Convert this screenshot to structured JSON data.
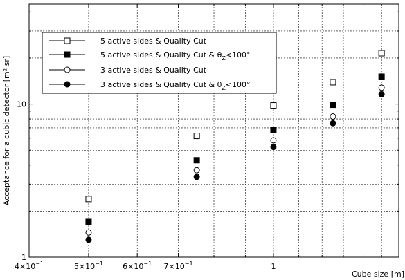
{
  "chart_data": {
    "type": "scatter",
    "xlabel": "Cube size [m]",
    "ylabel": "Acceptance for a cubic detector [m² sr]",
    "x_scale": "log",
    "y_scale": "log",
    "xlim": [
      0.4,
      1.6
    ],
    "ylim": [
      1,
      45
    ],
    "grid": "dashed, major and minor",
    "x_ticks": [
      {
        "value": 0.4,
        "mant": "4",
        "exp": "−1"
      },
      {
        "value": 0.5,
        "mant": "5",
        "exp": "−1"
      },
      {
        "value": 0.6,
        "mant": "6",
        "exp": "−1"
      },
      {
        "value": 0.7,
        "mant": "7",
        "exp": "−1"
      },
      {
        "value": 1.0,
        "mant": "1",
        "exp": ""
      }
    ],
    "y_ticks": [
      {
        "value": 1,
        "label": "1"
      },
      {
        "value": 10,
        "label": "10"
      }
    ],
    "legend": {
      "position": "top-left",
      "entries": [
        {
          "marker": "open-square",
          "text": "5 active sides & Quality Cut",
          "theta": false
        },
        {
          "marker": "filled-square",
          "text": "5 active sides & Quality Cut & ",
          "theta": true
        },
        {
          "marker": "open-circle",
          "text": "3 active sides & Quality Cut",
          "theta": false
        },
        {
          "marker": "filled-circle",
          "text": "3 active sides & Quality Cut & ",
          "theta": true
        }
      ],
      "theta_text": {
        "sym": "θ",
        "sub": "Z",
        "rest": "<100°"
      }
    },
    "series": [
      {
        "marker": "open-square",
        "x": [
          0.5,
          0.75,
          1.0,
          1.25,
          1.5
        ],
        "y": [
          2.4,
          6.2,
          9.8,
          13.9,
          21.5
        ]
      },
      {
        "marker": "filled-square",
        "x": [
          0.5,
          0.75,
          1.0,
          1.25,
          1.5
        ],
        "y": [
          1.7,
          4.3,
          6.8,
          9.9,
          15.1
        ]
      },
      {
        "marker": "open-circle",
        "x": [
          0.5,
          0.75,
          1.0,
          1.25,
          1.5
        ],
        "y": [
          1.45,
          3.7,
          5.8,
          8.3,
          12.8
        ]
      },
      {
        "marker": "filled-circle",
        "x": [
          0.5,
          0.75,
          1.0,
          1.25,
          1.5
        ],
        "y": [
          1.3,
          3.35,
          5.25,
          7.5,
          11.6
        ]
      }
    ]
  }
}
